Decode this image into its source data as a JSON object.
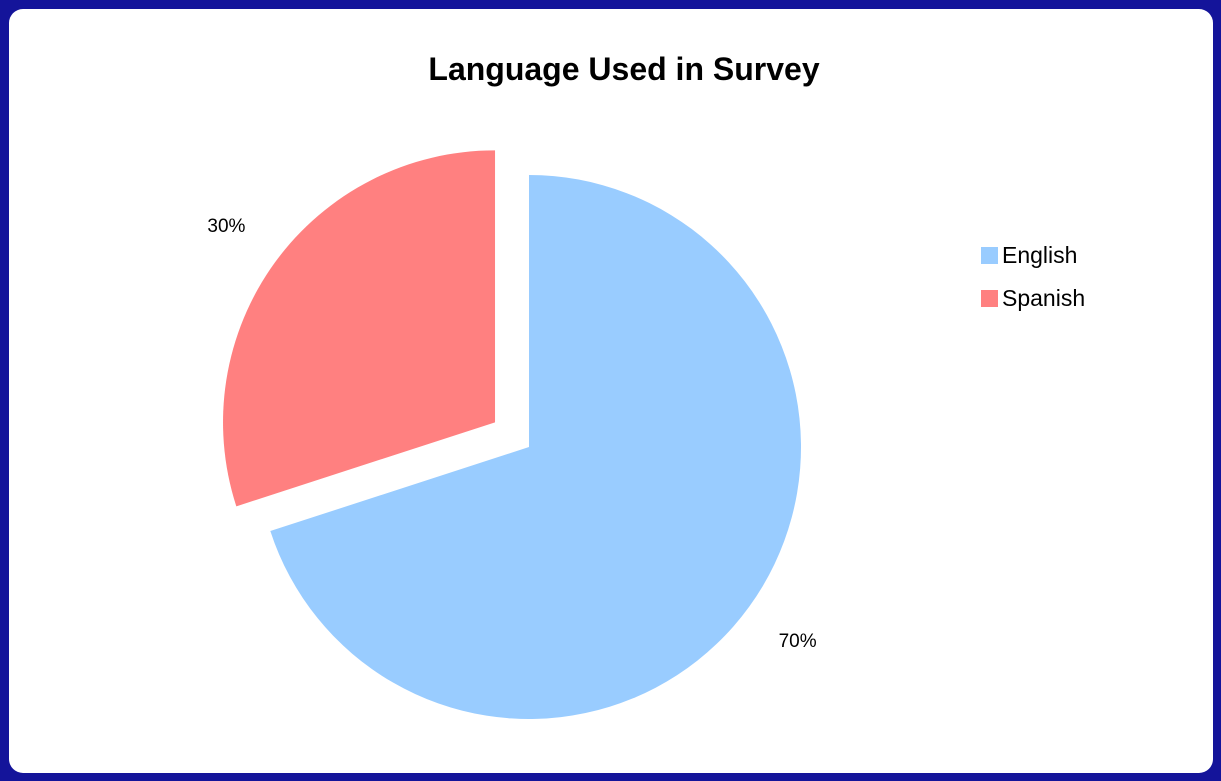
{
  "chart_data": {
    "type": "pie",
    "title": "Language Used in Survey",
    "categories": [
      "English",
      "Spanish"
    ],
    "values": [
      70,
      30
    ],
    "data_labels": [
      "70%",
      "30%"
    ],
    "colors": [
      "#99ccff",
      "#ff8080"
    ],
    "exploded": [
      "Spanish"
    ],
    "legend_position": "right"
  },
  "colors": {
    "background": "#14149a",
    "card": "#ffffff"
  }
}
